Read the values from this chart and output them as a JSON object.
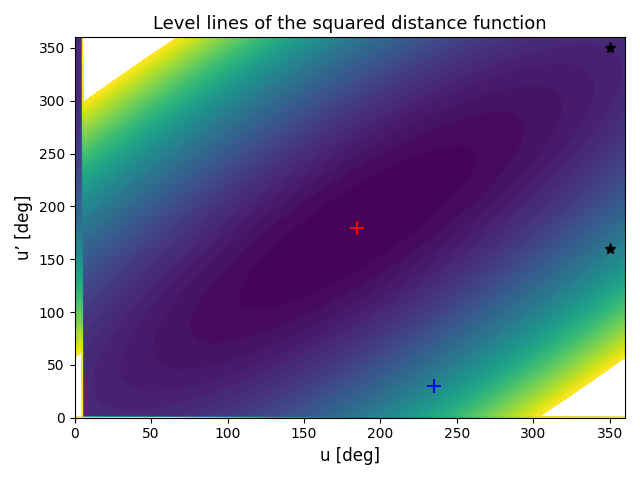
{
  "title": "Level lines of the squared distance function",
  "xlabel": "u [deg]",
  "ylabel": "u’ [deg]",
  "xlim": [
    0,
    360
  ],
  "ylim": [
    0,
    360
  ],
  "xticks": [
    0,
    50,
    100,
    150,
    200,
    250,
    300,
    350
  ],
  "yticks": [
    0,
    50,
    100,
    150,
    200,
    250,
    300,
    350
  ],
  "red_plus": [
    185,
    180
  ],
  "blue_plus": [
    235,
    30
  ],
  "black_star1": [
    350,
    350
  ],
  "black_star2": [
    350,
    160
  ],
  "cmap": "viridis",
  "n_levels": 50,
  "u0": 185,
  "v0": 180,
  "a_diag": 0.08,
  "b_perp": 1.0,
  "figsize": [
    6.4,
    4.8
  ],
  "dpi": 100
}
